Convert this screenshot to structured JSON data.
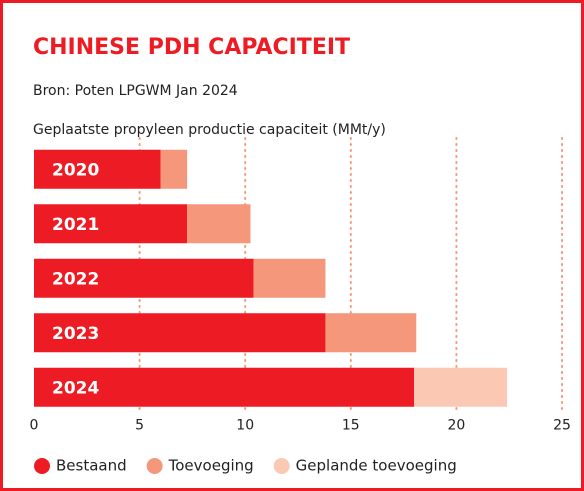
{
  "chart_data": {
    "type": "stacked-barh",
    "title": "CHINESE PDH CAPACITEIT",
    "subtitle": "Bron: Poten LPGWM Jan 2024",
    "axis_label": "Geplaatste propyleen productie capaciteit (MMt/y)",
    "categories": [
      "2020",
      "2021",
      "2022",
      "2023",
      "2024"
    ],
    "series": [
      {
        "name": "Bestaand",
        "color": "#ed1c24",
        "values": [
          6.0,
          7.25,
          10.4,
          13.8,
          18.0
        ]
      },
      {
        "name": "Toevoeging",
        "color": "#f4977a",
        "values": [
          1.25,
          3.0,
          3.4,
          4.3,
          null
        ]
      },
      {
        "name": "Geplande toevoeging",
        "color": "#fbc8b4",
        "values": [
          null,
          null,
          null,
          null,
          4.4
        ]
      }
    ],
    "xlim": [
      0,
      25
    ],
    "xticks": [
      0,
      5,
      10,
      15,
      20,
      25
    ],
    "grid": true
  }
}
